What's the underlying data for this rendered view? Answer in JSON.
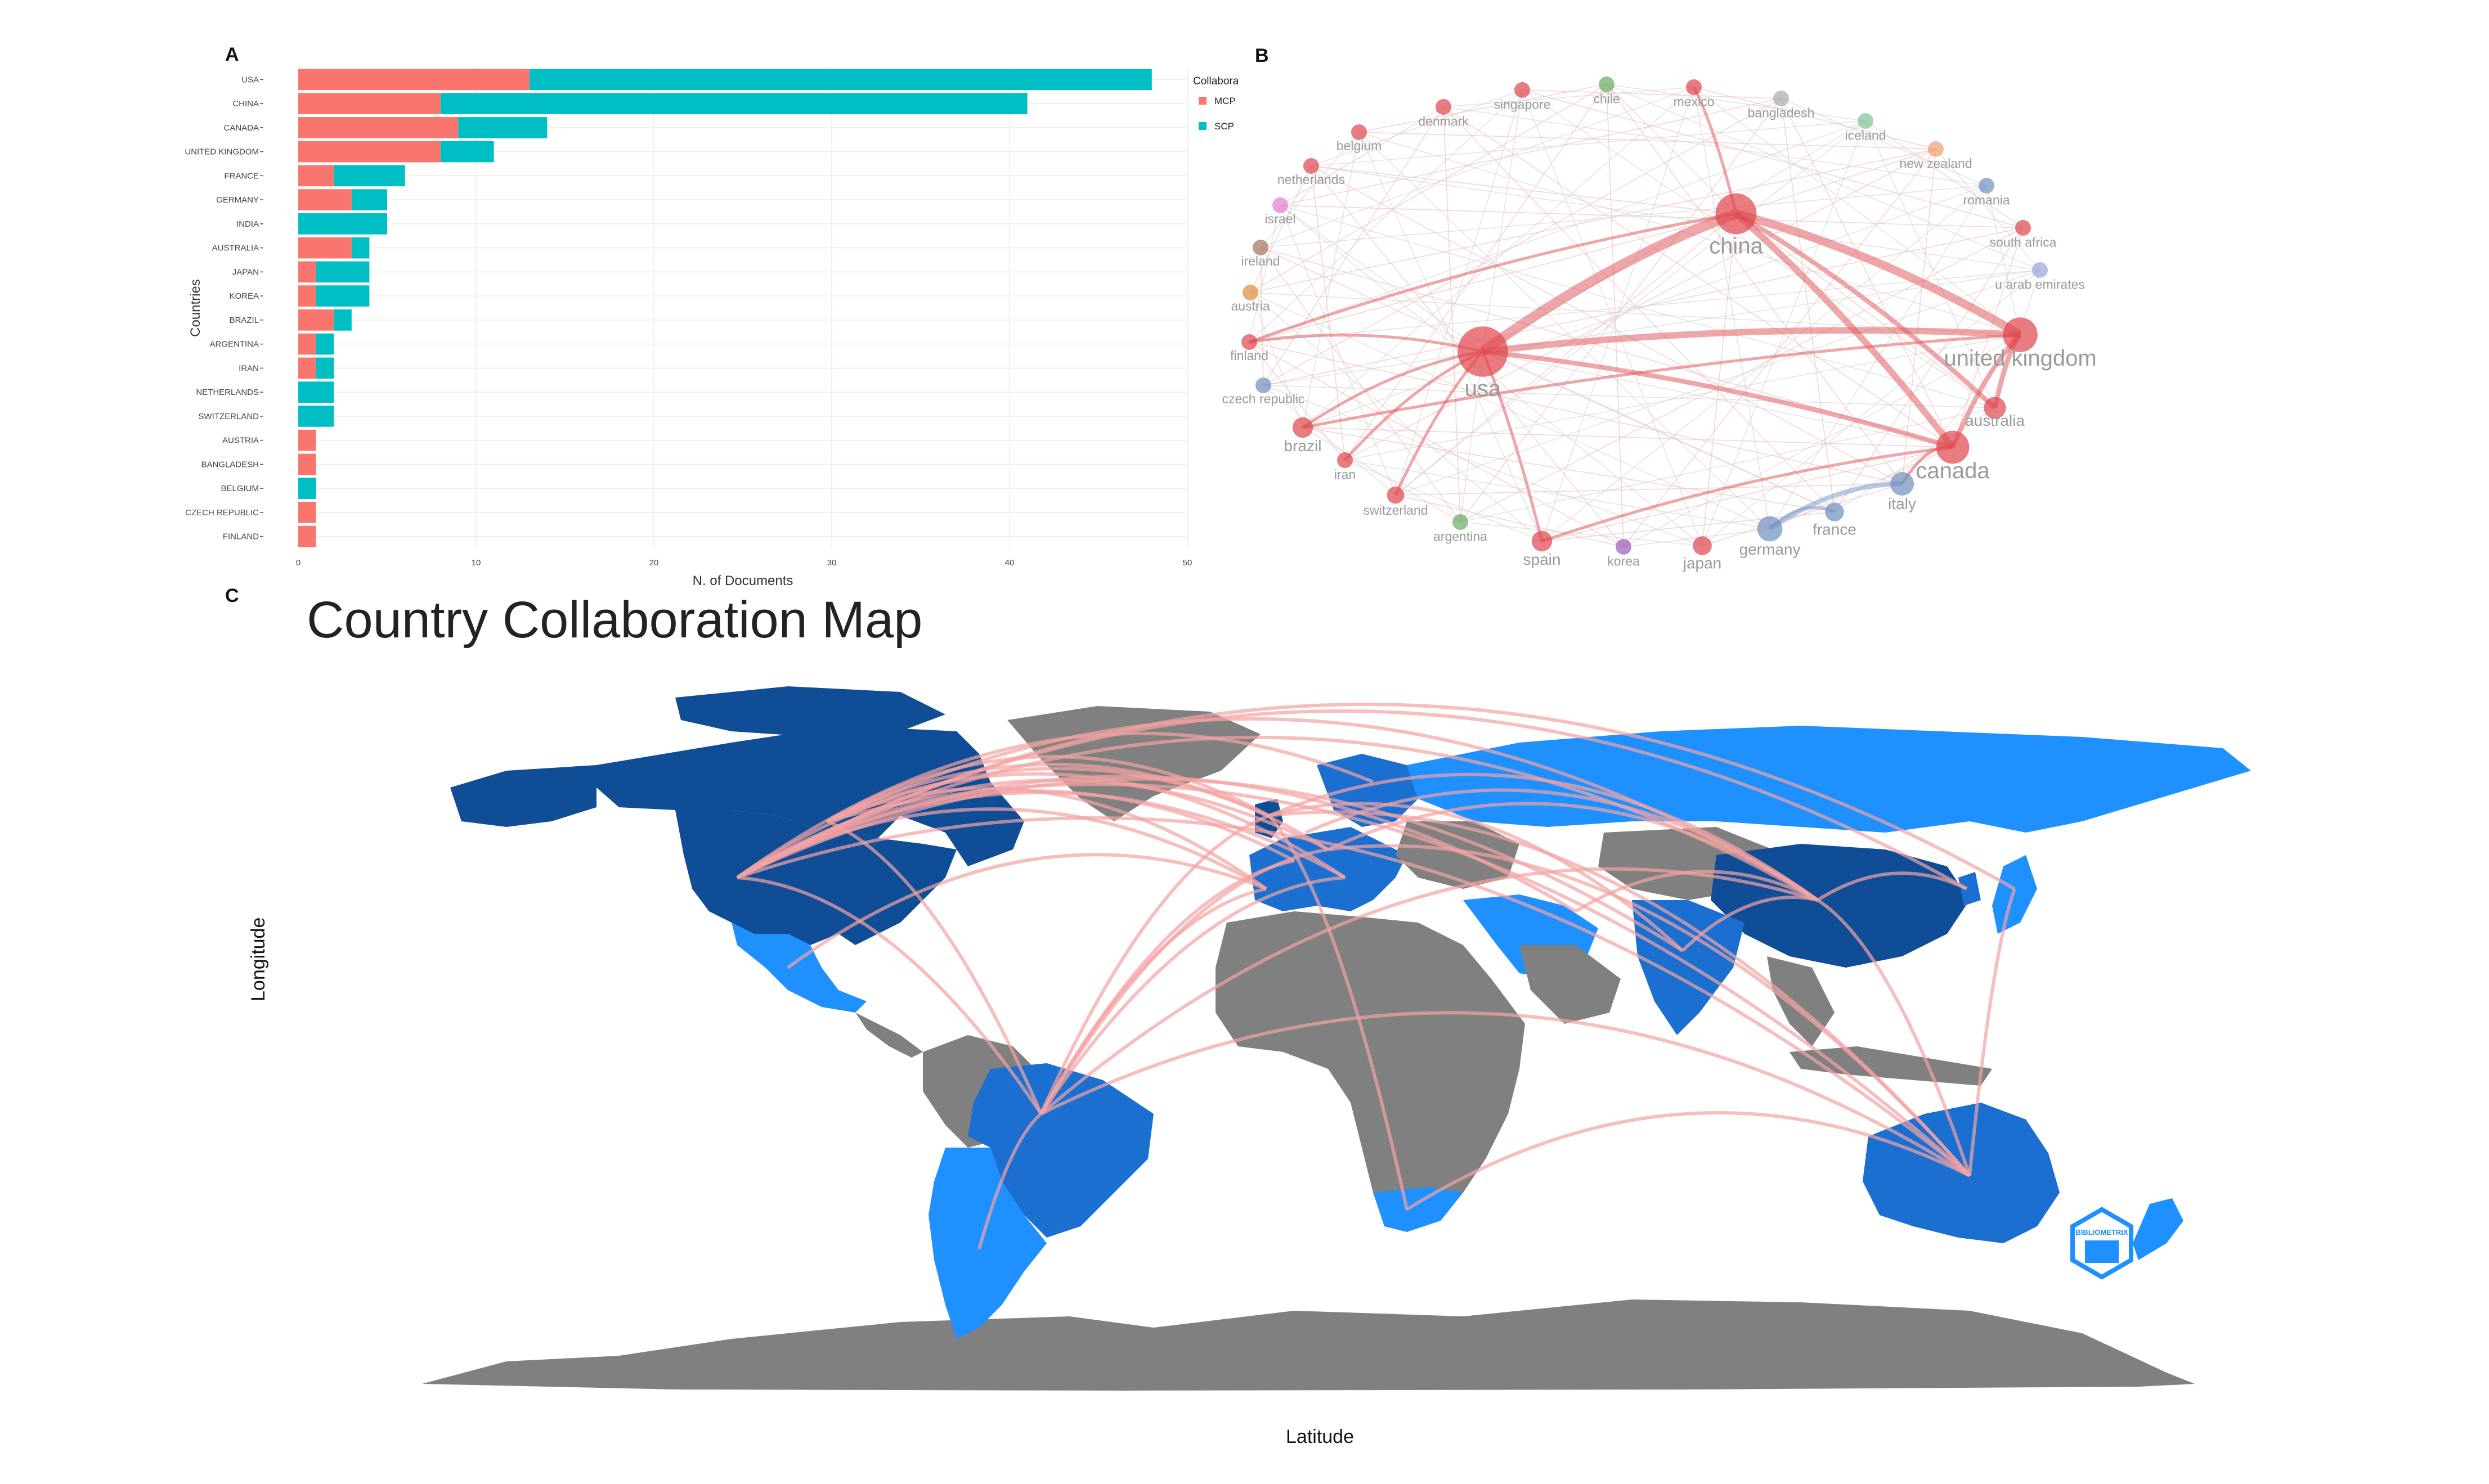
{
  "panels": {
    "a": "A",
    "b": "B",
    "c": "C"
  },
  "chart_data": [
    {
      "type": "bar",
      "stacked": true,
      "orientation": "horizontal",
      "categories": [
        "USA",
        "CHINA",
        "CANADA",
        "UNITED KINGDOM",
        "FRANCE",
        "GERMANY",
        "INDIA",
        "AUSTRALIA",
        "JAPAN",
        "KOREA",
        "BRAZIL",
        "ARGENTINA",
        "IRAN",
        "NETHERLANDS",
        "SWITZERLAND",
        "AUSTRIA",
        "BANGLADESH",
        "BELGIUM",
        "CZECH REPUBLIC",
        "FINLAND"
      ],
      "series": [
        {
          "name": "MCP",
          "color": "#F8766D",
          "values": [
            13,
            8,
            9,
            8,
            2,
            3,
            0,
            3,
            1,
            1,
            2,
            1,
            1,
            0,
            0,
            1,
            1,
            0,
            1,
            1
          ]
        },
        {
          "name": "SCP",
          "color": "#00BFC4",
          "values": [
            35,
            33,
            5,
            3,
            4,
            2,
            5,
            1,
            3,
            3,
            1,
            1,
            1,
            2,
            2,
            0,
            0,
            1,
            0,
            0
          ]
        }
      ],
      "xlabel": "N. of Documents",
      "ylabel": "Countries",
      "xlim": [
        0,
        50
      ],
      "xticks": [
        0,
        10,
        20,
        30,
        40,
        50
      ],
      "legend_title": "Collaboration",
      "legend_position": "right",
      "grid": true
    },
    {
      "type": "network",
      "layout": "circle",
      "nodes": [
        {
          "id": "usa",
          "label": "usa",
          "color": "#e0454b",
          "size": 3.2
        },
        {
          "id": "china",
          "label": "china",
          "color": "#e0454b",
          "size": 2.6
        },
        {
          "id": "uk",
          "label": "united kingdom",
          "color": "#e0454b",
          "size": 2.2
        },
        {
          "id": "canada",
          "label": "canada",
          "color": "#e0454b",
          "size": 2.1
        },
        {
          "id": "australia",
          "label": "australia",
          "color": "#e0454b",
          "size": 1.4
        },
        {
          "id": "italy",
          "label": "italy",
          "color": "#6f8fc0",
          "size": 1.5
        },
        {
          "id": "germany",
          "label": "germany",
          "color": "#6f8fc0",
          "size": 1.6
        },
        {
          "id": "france",
          "label": "france",
          "color": "#6f8fc0",
          "size": 1.2
        },
        {
          "id": "japan",
          "label": "japan",
          "color": "#e0454b",
          "size": 1.2
        },
        {
          "id": "korea",
          "label": "korea",
          "color": "#9b59b6",
          "size": 1.0
        },
        {
          "id": "spain",
          "label": "spain",
          "color": "#e0454b",
          "size": 1.3
        },
        {
          "id": "argentina",
          "label": "argentina",
          "color": "#6aaa64",
          "size": 1.0
        },
        {
          "id": "switzerland",
          "label": "switzerland",
          "color": "#e0454b",
          "size": 1.1
        },
        {
          "id": "iran",
          "label": "iran",
          "color": "#e0454b",
          "size": 1.0
        },
        {
          "id": "brazil",
          "label": "brazil",
          "color": "#e0454b",
          "size": 1.3
        },
        {
          "id": "czech",
          "label": "czech republic",
          "color": "#6f8fc0",
          "size": 1.0
        },
        {
          "id": "finland",
          "label": "finland",
          "color": "#e0454b",
          "size": 1.0
        },
        {
          "id": "austria",
          "label": "austria",
          "color": "#e08a3c",
          "size": 1.0
        },
        {
          "id": "ireland",
          "label": "ireland",
          "color": "#a0765a",
          "size": 1.0
        },
        {
          "id": "israel",
          "label": "israel",
          "color": "#e47ad0",
          "size": 1.0
        },
        {
          "id": "netherlands",
          "label": "netherlands",
          "color": "#e0454b",
          "size": 1.0
        },
        {
          "id": "belgium",
          "label": "belgium",
          "color": "#e0454b",
          "size": 1.0
        },
        {
          "id": "denmark",
          "label": "denmark",
          "color": "#e0454b",
          "size": 1.0
        },
        {
          "id": "singapore",
          "label": "singapore",
          "color": "#e0454b",
          "size": 1.0
        },
        {
          "id": "chile",
          "label": "chile",
          "color": "#6aaa64",
          "size": 1.0
        },
        {
          "id": "mexico",
          "label": "mexico",
          "color": "#e0454b",
          "size": 1.0
        },
        {
          "id": "bangladesh",
          "label": "bangladesh",
          "color": "#aaaaaa",
          "size": 1.0
        },
        {
          "id": "iceland",
          "label": "iceland",
          "color": "#7fc29b",
          "size": 1.0
        },
        {
          "id": "nz",
          "label": "new zealand",
          "color": "#f0a070",
          "size": 1.0
        },
        {
          "id": "romania",
          "label": "romania",
          "color": "#6f8fc0",
          "size": 1.0
        },
        {
          "id": "sa",
          "label": "south africa",
          "color": "#e0454b",
          "size": 1.0
        },
        {
          "id": "uae",
          "label": "u arab emirates",
          "color": "#9aa4d8",
          "size": 1.0
        }
      ],
      "edges": [
        [
          "usa",
          "china",
          5
        ],
        [
          "china",
          "uk",
          4
        ],
        [
          "usa",
          "uk",
          3
        ],
        [
          "china",
          "canada",
          3
        ],
        [
          "usa",
          "canada",
          2
        ],
        [
          "uk",
          "canada",
          2
        ],
        [
          "china",
          "australia",
          2
        ],
        [
          "uk",
          "australia",
          2
        ],
        [
          "usa",
          "brazil",
          1
        ],
        [
          "usa",
          "finland",
          1
        ],
        [
          "china",
          "finland",
          1
        ],
        [
          "usa",
          "spain",
          1
        ],
        [
          "germany",
          "italy",
          2
        ],
        [
          "germany",
          "france",
          1
        ],
        [
          "canada",
          "italy",
          1
        ],
        [
          "usa",
          "iran",
          1
        ],
        [
          "china",
          "mexico",
          1
        ],
        [
          "uk",
          "brazil",
          1
        ],
        [
          "canada",
          "spain",
          1
        ],
        [
          "usa",
          "switzerland",
          1
        ]
      ]
    }
  ],
  "map": {
    "title": "Country Collaboration Map",
    "xlabel": "Latitude",
    "ylabel": "Longitude",
    "colors": {
      "ocean": "#ffffff",
      "no_data": "#808080",
      "light": "#1e90ff",
      "mid": "#1a6fd0",
      "dark": "#0f4d96",
      "links": "#f4a3a3"
    },
    "logo_text": "BIBLIOMETRIX"
  }
}
